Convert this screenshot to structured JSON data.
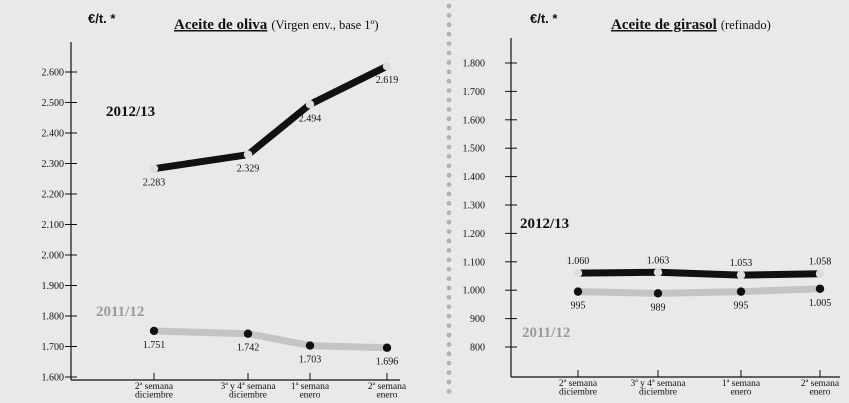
{
  "chart_data": [
    {
      "type": "line",
      "unit_label": "€/t. *",
      "title": "Aceite de oliva",
      "subtitle": "(Virgen env., base 1º)",
      "categories": [
        [
          "2ª semana",
          "diciembre"
        ],
        [
          "3ª y 4ª semana",
          "diciembre"
        ],
        [
          "1ª semana",
          "enero"
        ],
        [
          "2ª semana",
          "enero"
        ]
      ],
      "ylim": [
        1600,
        2650
      ],
      "yticks": [
        "1.600",
        "1.700",
        "1.800",
        "1.900",
        "2.000",
        "2.100",
        "2.200",
        "2.300",
        "2.400",
        "2.500",
        "2.600"
      ],
      "series": [
        {
          "name": "2012/13",
          "values": [
            2283,
            2329,
            2494,
            2619
          ],
          "labels": [
            "2.283",
            "2.329",
            "2.494",
            "2.619"
          ],
          "color": "#111111",
          "marker": "#dddddd",
          "label_pos": "below"
        },
        {
          "name": "2011/12",
          "values": [
            1751,
            1742,
            1703,
            1696
          ],
          "labels": [
            "1.751",
            "1.742",
            "1.703",
            "1.696"
          ],
          "color": "#c4c4c4",
          "marker": "#111111",
          "label_pos": "below"
        }
      ],
      "grid": false
    },
    {
      "type": "line",
      "unit_label": "€/t. *",
      "title": "Aceite de girasol",
      "subtitle": "(refinado)",
      "categories": [
        [
          "2ª semana",
          "diciembre"
        ],
        [
          "3ª y 4ª semana",
          "diciembre"
        ],
        [
          "1ª semana",
          "enero"
        ],
        [
          "2ª semana",
          "enero"
        ]
      ],
      "ylim": [
        750,
        1850
      ],
      "yticks": [
        "800",
        "900",
        "1.000",
        "1.100",
        "1.200",
        "1.300",
        "1.400",
        "1.500",
        "1.600",
        "1.700",
        "1.800"
      ],
      "series": [
        {
          "name": "2012/13",
          "values": [
            1060,
            1063,
            1053,
            1058
          ],
          "labels": [
            "1.060",
            "1.063",
            "1.053",
            "1.058"
          ],
          "color": "#111111",
          "marker": "#dddddd",
          "label_pos": "above"
        },
        {
          "name": "2011/12",
          "values": [
            995,
            989,
            995,
            1005
          ],
          "labels": [
            "995",
            "989",
            "995",
            "1.005"
          ],
          "color": "#c4c4c4",
          "marker": "#111111",
          "label_pos": "below"
        }
      ],
      "grid": false
    }
  ]
}
